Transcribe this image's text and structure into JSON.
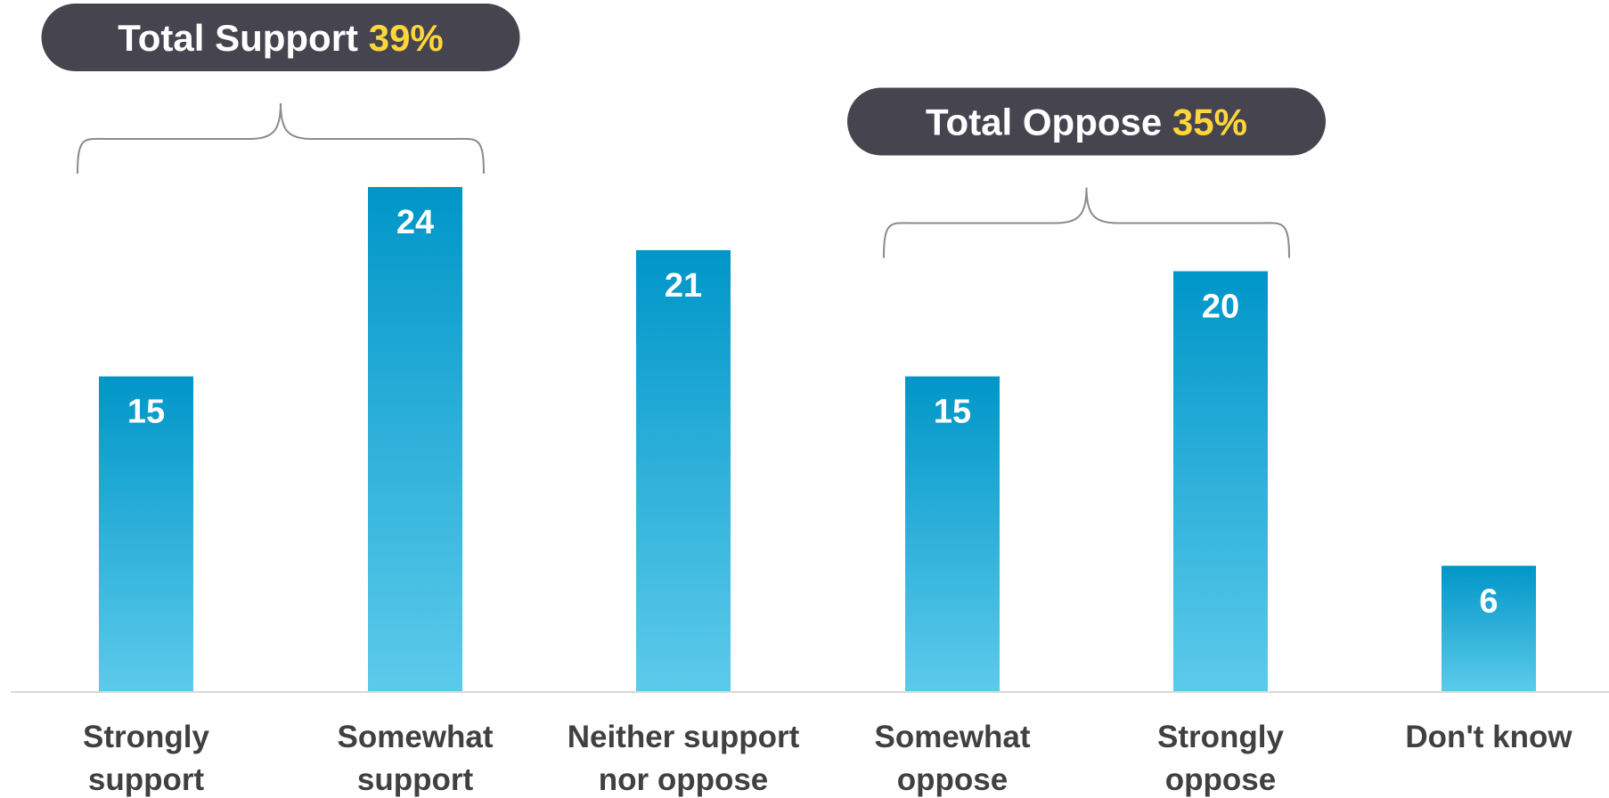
{
  "chart_data": {
    "type": "bar",
    "categories": [
      [
        "Strongly",
        "support"
      ],
      [
        "Somewhat",
        "support"
      ],
      [
        "Neither support",
        "nor oppose"
      ],
      [
        "Somewhat",
        "oppose"
      ],
      [
        "Strongly",
        "oppose"
      ],
      [
        "Don't know"
      ]
    ],
    "values": [
      15,
      24,
      21,
      15,
      20,
      6
    ],
    "data_labels": [
      "15",
      "24",
      "21",
      "15",
      "20",
      "6"
    ],
    "ylim": [
      0,
      24
    ],
    "grid": false,
    "bar_gradient": {
      "top": "#0096c8",
      "bottom": "#5ccbeb"
    },
    "annotations": [
      {
        "label": "Total Support",
        "value": "39%",
        "spans": [
          0,
          1
        ],
        "position": "top-left"
      },
      {
        "label": "Total Oppose",
        "value": "35%",
        "spans": [
          3,
          4
        ],
        "position": "top-right"
      }
    ]
  }
}
